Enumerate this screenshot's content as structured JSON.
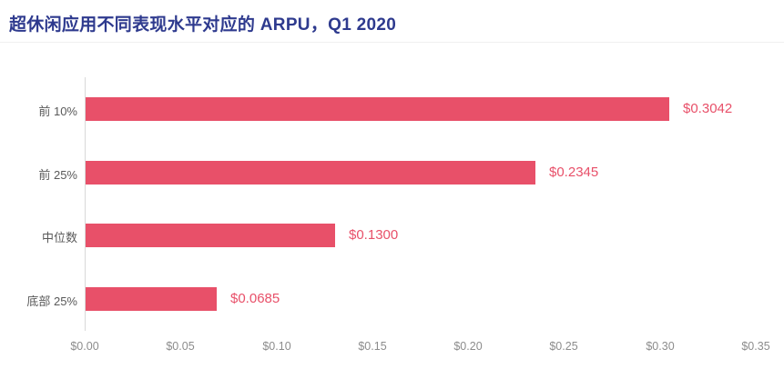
{
  "page": {
    "title": "超休闲应用不同表现水平对应的 ARPU，Q1 2020"
  },
  "colors": {
    "bar": "#e85069",
    "title_text": "#2e3a8e",
    "value_label": "#e85069",
    "axis_line": "#d9d9d9",
    "tick_label": "#8c8c8c",
    "category_label": "#595959",
    "divider": "#f0f0f0",
    "background": "#ffffff"
  },
  "chart_data": {
    "type": "bar",
    "orientation": "horizontal",
    "title": "超休闲应用不同表现水平对应的 ARPU，Q1 2020",
    "categories": [
      "前 10%",
      "前 25%",
      "中位数",
      "底部 25%"
    ],
    "values": [
      0.3042,
      0.2345,
      0.13,
      0.0685
    ],
    "value_labels": [
      "$0.3042",
      "$0.2345",
      "$0.1300",
      "$0.0685"
    ],
    "x_tick_labels": [
      "$0.00",
      "$0.05",
      "$0.10",
      "$0.15",
      "$0.20",
      "$0.25",
      "$0.30",
      "$0.35"
    ],
    "x_tick_values": [
      0,
      0.05,
      0.1,
      0.15,
      0.2,
      0.25,
      0.3,
      0.35
    ],
    "xlim": [
      0,
      0.35
    ],
    "xlabel": "",
    "ylabel": "",
    "grid": false,
    "legend_visible": false
  }
}
